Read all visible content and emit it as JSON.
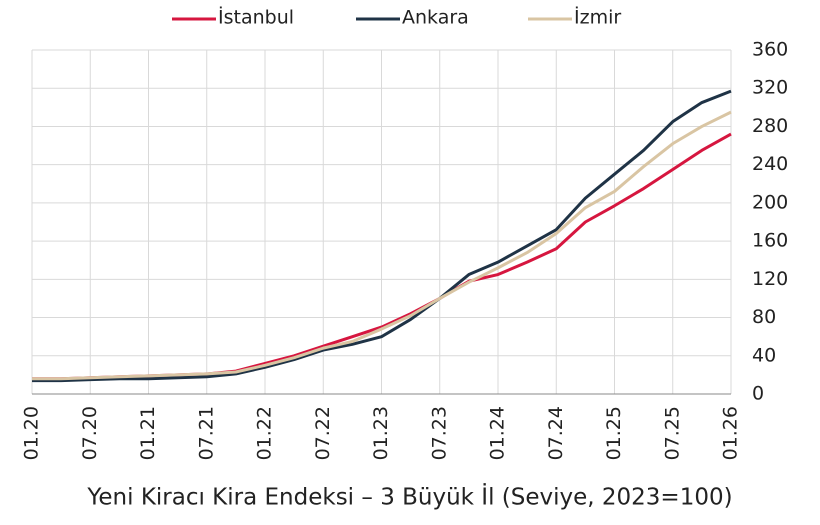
{
  "chart_data": {
    "type": "line",
    "caption": "Yeni Kiracı Kira Endeksi – 3 Büyük İl (Seviye, 2023=100)",
    "categories": [
      "01.20",
      null,
      "07.20",
      null,
      "01.21",
      null,
      "07.21",
      null,
      "01.22",
      null,
      "07.22",
      null,
      "01.23",
      null,
      "07.23",
      null,
      "01.24",
      null,
      "07.24",
      null,
      "01.25",
      null,
      "07.25",
      null,
      "01.26"
    ],
    "series": [
      {
        "name": "İstanbul",
        "color": "#d6163f",
        "values": [
          16,
          16,
          17,
          18,
          19,
          20,
          21,
          24,
          32,
          40,
          50,
          60,
          70,
          84,
          100,
          118,
          125,
          138,
          152,
          180,
          197,
          215,
          235,
          255,
          272
        ]
      },
      {
        "name": "Ankara",
        "color": "#1f3346",
        "values": [
          14,
          14,
          15,
          16,
          16,
          17,
          18,
          21,
          28,
          36,
          46,
          52,
          60,
          78,
          100,
          125,
          138,
          155,
          172,
          205,
          230,
          255,
          285,
          305,
          317
        ]
      },
      {
        "name": "İzmir",
        "color": "#d9c5a3",
        "values": [
          16,
          16,
          17,
          18,
          19,
          20,
          21,
          23,
          30,
          38,
          48,
          55,
          68,
          82,
          100,
          117,
          132,
          148,
          168,
          195,
          212,
          238,
          262,
          280,
          295
        ]
      }
    ],
    "ylim": [
      0,
      360
    ],
    "yticks": [
      0,
      40,
      80,
      120,
      160,
      200,
      240,
      280,
      320,
      360
    ],
    "grid": true,
    "legend": "top"
  }
}
